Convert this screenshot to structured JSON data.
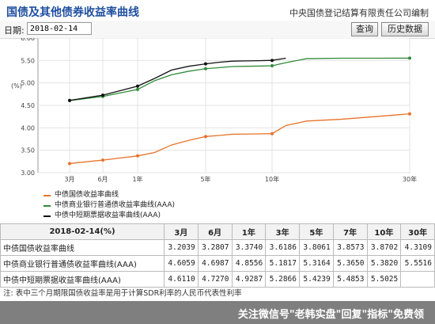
{
  "header": {
    "title": "国债及其他债券收益率曲线",
    "org": "中央国债登记结算有限责任公司编制"
  },
  "datebar": {
    "date_label": "日期:",
    "date_value": "2018-02-14",
    "query_button": "查询",
    "history_button": "历史数据"
  },
  "chart_data": {
    "type": "line",
    "ylabel": "(%)",
    "ylim": [
      3.0,
      6.0
    ],
    "y_ticks": [
      "6.00",
      "5.50",
      "5.00",
      "4.50",
      "4.00",
      "3.50",
      "3.00"
    ],
    "y_tick_values": [
      6.0,
      5.5,
      5.0,
      4.5,
      4.0,
      3.5,
      3.0
    ],
    "xlim": [
      0,
      30
    ],
    "x_ticks": [
      {
        "label": "3月",
        "value": 0.25
      },
      {
        "label": "6月",
        "value": 0.5
      },
      {
        "label": "1年",
        "value": 1
      },
      {
        "label": "5年",
        "value": 5
      },
      {
        "label": "10年",
        "value": 10
      },
      {
        "label": "30年",
        "value": 30
      }
    ],
    "grid": true,
    "series": [
      {
        "name": "中债国债收益率曲线",
        "color": "#e8732a",
        "x": [
          0.25,
          0.5,
          1,
          2,
          3,
          4,
          5,
          6,
          7,
          8,
          9,
          10,
          12,
          15,
          20,
          25,
          30
        ],
        "y": [
          3.2039,
          3.2807,
          3.374,
          3.45,
          3.6186,
          3.72,
          3.8061,
          3.83,
          3.8573,
          3.86,
          3.865,
          3.8702,
          4.05,
          4.15,
          4.19,
          4.25,
          4.3109
        ]
      },
      {
        "name": "中债商业银行普通债收益率曲线(AAA)",
        "color": "#2e8b3a",
        "x": [
          0.25,
          0.5,
          1,
          2,
          3,
          4,
          5,
          6,
          7,
          8,
          9,
          10,
          12,
          15,
          20,
          25,
          30
        ],
        "y": [
          4.6059,
          4.6987,
          4.8556,
          5.05,
          5.1817,
          5.26,
          5.3164,
          5.34,
          5.365,
          5.37,
          5.375,
          5.382,
          5.45,
          5.54,
          5.55,
          5.55,
          5.5516
        ]
      },
      {
        "name": "中债中短期票据收益率曲线(AAA)",
        "color": "#111111",
        "x": [
          0.25,
          0.5,
          1,
          2,
          3,
          4,
          5,
          6,
          7,
          8,
          9,
          10,
          12
        ],
        "y": [
          4.611,
          4.727,
          4.9287,
          5.1,
          5.2866,
          5.37,
          5.4239,
          5.46,
          5.4853,
          5.49,
          5.495,
          5.5025,
          5.55
        ]
      }
    ]
  },
  "table": {
    "headers": [
      "2018-02-14(%)",
      "3月",
      "6月",
      "1年",
      "3年",
      "5年",
      "7年",
      "10年",
      "30年"
    ],
    "rows": [
      {
        "name": "中债国债收益率曲线",
        "values": [
          "3.2039",
          "3.2807",
          "3.3740",
          "3.6186",
          "3.8061",
          "3.8573",
          "3.8702",
          "4.3109"
        ]
      },
      {
        "name": "中债商业银行普通债收益率曲线(AAA)",
        "values": [
          "4.6059",
          "4.6987",
          "4.8556",
          "5.1817",
          "5.3164",
          "5.3650",
          "5.3820",
          "5.5516"
        ]
      },
      {
        "name": "中债中短期票据收益率曲线(AAA)",
        "values": [
          "4.6110",
          "4.7270",
          "4.9287",
          "5.2866",
          "5.4239",
          "5.4853",
          "5.5025",
          ""
        ]
      }
    ]
  },
  "note": "注: 表中三个月期限国债收益率是用于计算SDR利率的人民币代表性利率",
  "watermark": "关注微信号\"老韩实盘\"回复\"指标\"免费领"
}
